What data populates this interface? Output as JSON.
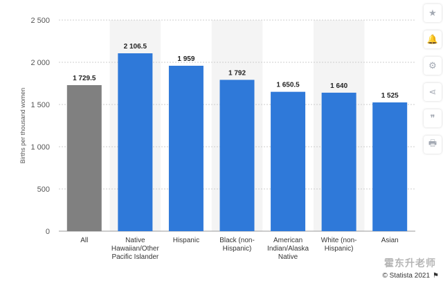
{
  "chart_data": {
    "type": "bar",
    "categories": [
      [
        "All"
      ],
      [
        "Native",
        "Hawaiian/Other",
        "Pacific Islander"
      ],
      [
        "Hispanic"
      ],
      [
        "Black (non-",
        "Hispanic)"
      ],
      [
        "American",
        "Indian/Alaska",
        "Native"
      ],
      [
        "White (non-",
        "Hispanic)"
      ],
      [
        "Asian"
      ]
    ],
    "values": [
      1729.5,
      2106.5,
      1959,
      1792,
      1650.5,
      1640,
      1525
    ],
    "data_labels": [
      "1 729.5",
      "2 106.5",
      "1 959",
      "1 792",
      "1 650.5",
      "1 640",
      "1 525"
    ],
    "ylabel": "Births per thousand women",
    "ylim": [
      0,
      2500
    ],
    "yticks": [
      0,
      500,
      1000,
      1500,
      2000,
      2500
    ],
    "ytick_labels": [
      "0",
      "500",
      "1 000",
      "1 500",
      "2 000",
      "2 500"
    ],
    "colors": {
      "first_bar": "#808080",
      "bars": "#2f79d9",
      "band": "#f4f4f4"
    },
    "grid": "horizontal dotted",
    "legend": "none"
  },
  "sidebar": {
    "buttons": [
      {
        "name": "star-icon",
        "glyph": "★"
      },
      {
        "name": "bell-icon",
        "glyph": "🔔"
      },
      {
        "name": "gear-icon",
        "glyph": "⚙"
      },
      {
        "name": "share-icon",
        "glyph": "⋖"
      },
      {
        "name": "quote-icon",
        "glyph": "❞"
      },
      {
        "name": "print-icon",
        "glyph": "🖶"
      }
    ]
  },
  "footer": {
    "credit": "© Statista 2021",
    "flag_glyph": "⚑"
  },
  "watermark": "霍东升老师"
}
